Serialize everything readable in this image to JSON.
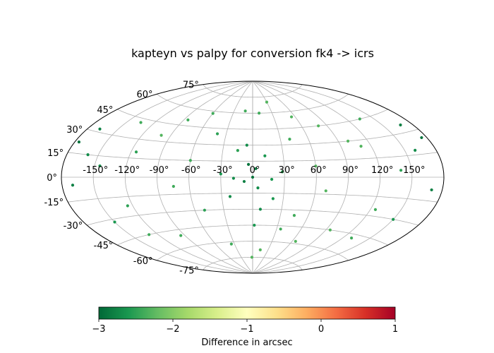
{
  "chart_data": {
    "type": "scatter",
    "projection": "aitoff",
    "title": "kapteyn vs palpy for conversion fk4 -> icrs",
    "grid": true,
    "lon_tick_labels": [
      "-150°",
      "-120°",
      "-90°",
      "-60°",
      "-30°",
      "0°",
      "30°",
      "60°",
      "90°",
      "120°",
      "150°"
    ],
    "lat_tick_labels": [
      "-75°",
      "-60°",
      "-45°",
      "-30°",
      "-15°",
      "0°",
      "15°",
      "30°",
      "45°",
      "60°",
      "75°"
    ],
    "lon_ticks": [
      -150,
      -120,
      -90,
      -60,
      -30,
      0,
      30,
      60,
      90,
      120,
      150
    ],
    "lat_ticks": [
      -75,
      -60,
      -45,
      -30,
      -15,
      0,
      15,
      30,
      45,
      60,
      75
    ],
    "colorbar": {
      "label": "Difference in arcsec",
      "colormap": "RdYlGn_r",
      "range": [
        -3,
        1
      ],
      "tick_labels": [
        "−3",
        "−2",
        "−1",
        "0",
        "1"
      ],
      "ticks": [
        -3,
        -2,
        -1,
        0,
        1
      ],
      "orientation": "horizontal",
      "position": "bottom"
    },
    "series": [
      {
        "marker_color_range": [
          -3.0,
          -2.2
        ],
        "points": [
          {
            "lon": 0,
            "lat": 0,
            "value": -2.9
          },
          {
            "lon": 3,
            "lat": 8,
            "value": -2.8
          },
          {
            "lon": -4,
            "lat": 12,
            "value": -2.9
          },
          {
            "lon": 5,
            "lat": -10,
            "value": -2.7
          },
          {
            "lon": -8,
            "lat": -4,
            "value": -2.8
          },
          {
            "lon": 12,
            "lat": 20,
            "value": -2.6
          },
          {
            "lon": -15,
            "lat": 25,
            "value": -2.5
          },
          {
            "lon": 20,
            "lat": -20,
            "value": -2.6
          },
          {
            "lon": -22,
            "lat": -18,
            "value": -2.7
          },
          {
            "lon": 28,
            "lat": 5,
            "value": -2.5
          },
          {
            "lon": -30,
            "lat": 3,
            "value": -2.6
          },
          {
            "lon": 40,
            "lat": 35,
            "value": -2.4
          },
          {
            "lon": -40,
            "lat": 40,
            "value": -2.5
          },
          {
            "lon": 45,
            "lat": -35,
            "value": -2.4
          },
          {
            "lon": -50,
            "lat": -30,
            "value": -2.5
          },
          {
            "lon": 60,
            "lat": 10,
            "value": -2.3
          },
          {
            "lon": -60,
            "lat": 15,
            "value": -2.4
          },
          {
            "lon": 70,
            "lat": -12,
            "value": -2.3
          },
          {
            "lon": -75,
            "lat": -8,
            "value": -2.4
          },
          {
            "lon": 80,
            "lat": 45,
            "value": -2.3
          },
          {
            "lon": -85,
            "lat": 50,
            "value": -2.4
          },
          {
            "lon": 95,
            "lat": -45,
            "value": -2.3
          },
          {
            "lon": -95,
            "lat": -50,
            "value": -2.4
          },
          {
            "lon": 110,
            "lat": 25,
            "value": -2.3
          },
          {
            "lon": -115,
            "lat": 20,
            "value": -2.5
          },
          {
            "lon": 125,
            "lat": -25,
            "value": -2.4
          },
          {
            "lon": -125,
            "lat": -22,
            "value": -2.5
          },
          {
            "lon": 140,
            "lat": 5,
            "value": -2.5
          },
          {
            "lon": -145,
            "lat": 8,
            "value": -2.6
          },
          {
            "lon": 160,
            "lat": 18,
            "value": -2.7
          },
          {
            "lon": -160,
            "lat": 15,
            "value": -2.7
          },
          {
            "lon": 170,
            "lat": -8,
            "value": -2.8
          },
          {
            "lon": -170,
            "lat": -5,
            "value": -2.8
          },
          {
            "lon": 175,
            "lat": 25,
            "value": -2.9
          },
          {
            "lon": -176,
            "lat": 22,
            "value": -2.9
          },
          {
            "lon": 168,
            "lat": 35,
            "value": -2.8
          },
          {
            "lon": -168,
            "lat": 32,
            "value": -2.8
          },
          {
            "lon": 150,
            "lat": -30,
            "value": -2.6
          },
          {
            "lon": -150,
            "lat": -32,
            "value": -2.6
          },
          {
            "lon": 10,
            "lat": 60,
            "value": -2.4
          },
          {
            "lon": -12,
            "lat": 62,
            "value": -2.4
          },
          {
            "lon": 30,
            "lat": 70,
            "value": -2.3
          },
          {
            "lon": -35,
            "lat": -62,
            "value": -2.4
          },
          {
            "lon": 15,
            "lat": -68,
            "value": -2.3
          },
          {
            "lon": -2,
            "lat": -75,
            "value": -2.3
          },
          {
            "lon": 55,
            "lat": 55,
            "value": -2.3
          },
          {
            "lon": -60,
            "lat": 58,
            "value": -2.4
          },
          {
            "lon": 65,
            "lat": -58,
            "value": -2.3
          },
          {
            "lon": -100,
            "lat": 35,
            "value": -2.3
          },
          {
            "lon": 100,
            "lat": 30,
            "value": -2.3
          },
          {
            "lon": 135,
            "lat": 45,
            "value": -2.4
          },
          {
            "lon": -135,
            "lat": 42,
            "value": -2.4
          },
          {
            "lon": 130,
            "lat": -48,
            "value": -2.4
          },
          {
            "lon": -130,
            "lat": -45,
            "value": -2.4
          },
          {
            "lon": 8,
            "lat": -30,
            "value": -2.7
          },
          {
            "lon": -6,
            "lat": 30,
            "value": -2.7
          },
          {
            "lon": 2,
            "lat": -45,
            "value": -2.6
          },
          {
            "lon": 18,
            "lat": -2,
            "value": -2.6
          },
          {
            "lon": -18,
            "lat": -1,
            "value": -2.7
          },
          {
            "lon": 35,
            "lat": -48,
            "value": -2.4
          }
        ]
      }
    ]
  }
}
